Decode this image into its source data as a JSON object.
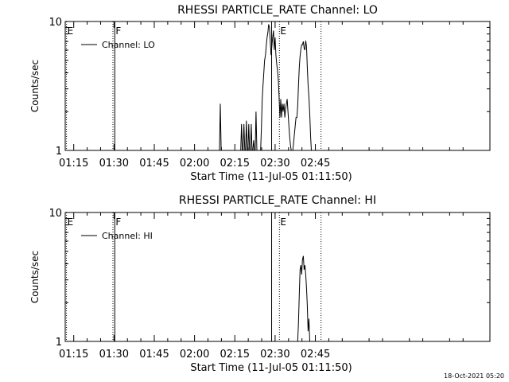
{
  "chart_data": [
    {
      "type": "line",
      "title": "RHESSI PARTICLE_RATE Channel: LO",
      "xlabel": "Start Time (11-Jul-05 01:11:50)",
      "ylabel": "Counts/sec",
      "yscale": "log",
      "xlim": [
        11.83,
        170.0
      ],
      "ylim": [
        1,
        10
      ],
      "xticks": [
        {
          "v": 15,
          "label": "01:15"
        },
        {
          "v": 30,
          "label": "01:30"
        },
        {
          "v": 45,
          "label": "01:45"
        },
        {
          "v": 60,
          "label": "02:00"
        },
        {
          "v": 75,
          "label": "02:15"
        },
        {
          "v": 90,
          "label": "02:30"
        },
        {
          "v": 105,
          "label": "02:45"
        }
      ],
      "yticks": [
        {
          "v": 1,
          "label": "1"
        },
        {
          "v": 10,
          "label": "10"
        }
      ],
      "legend": {
        "position": "top-left",
        "entries": [
          "Channel: LO"
        ]
      },
      "markers": [
        {
          "x": 12.3,
          "label": "E",
          "style": "dotted"
        },
        {
          "x": 29.6,
          "label": "",
          "style": "dotted"
        },
        {
          "x": 30.3,
          "label": "F",
          "style": "solid"
        },
        {
          "x": 88.7,
          "label": "",
          "style": "solid"
        },
        {
          "x": 91.6,
          "label": "E",
          "style": "dotted"
        },
        {
          "x": 107.1,
          "label": "",
          "style": "dotted"
        }
      ],
      "series": [
        {
          "x": [
            69.0,
            69.3,
            69.6,
            69.9,
            70.2,
            77.2,
            77.5,
            77.8,
            78.1,
            78.4,
            78.7,
            79.0,
            79.3,
            79.6,
            79.9,
            80.2,
            80.5,
            80.8,
            81.1,
            81.4,
            81.7,
            82.0,
            82.3,
            82.6,
            82.9,
            83.2,
            83.5,
            83.8,
            84.6,
            84.9,
            85.2,
            85.5,
            85.8,
            86.1,
            86.4,
            86.7,
            87.0,
            87.3,
            87.6,
            87.9,
            88.2,
            88.5,
            88.8,
            89.1,
            89.4,
            89.7,
            90.0,
            90.3,
            90.6,
            90.9,
            91.2,
            91.5,
            91.8,
            92.1,
            92.4,
            92.7,
            93.0,
            93.3,
            93.6,
            93.9,
            94.2,
            94.5,
            94.8,
            95.1,
            95.4,
            95.7,
            96.0,
            96.3,
            96.6,
            97.8,
            98.1,
            98.4,
            98.7,
            99.0,
            99.3,
            99.6,
            99.9,
            100.2,
            100.5,
            100.8,
            101.1,
            101.4,
            101.7,
            102.0,
            102.3,
            102.6,
            102.9,
            103.2,
            103.5
          ],
          "y": [
            1,
            1,
            2.3,
            1,
            1,
            1,
            1.6,
            1,
            1,
            1.6,
            1,
            1,
            1.7,
            1,
            1,
            1.6,
            1,
            1,
            1.6,
            1,
            1,
            1.2,
            1,
            1,
            2,
            1,
            1,
            1,
            1,
            1.5,
            2.5,
            3.2,
            4,
            5,
            5.5,
            6.5,
            7.5,
            8.2,
            9.5,
            9,
            7,
            5.5,
            6.5,
            7.6,
            8.5,
            6,
            7.5,
            5.5,
            4.7,
            4.2,
            3.5,
            2.5,
            1.8,
            2.5,
            1.8,
            2.3,
            2,
            2.3,
            1.8,
            2.1,
            2.3,
            2.5,
            2,
            1.6,
            1.3,
            1.1,
            1,
            1,
            1,
            1.8,
            1.8,
            2.2,
            3.2,
            4.4,
            5.4,
            6.1,
            6.6,
            6.6,
            7.0,
            6.2,
            6.0,
            7.1,
            6.4,
            4.4,
            3.2,
            2.6,
            1.9,
            1.3,
            1
          ]
        }
      ]
    },
    {
      "type": "line",
      "title": "RHESSI PARTICLE_RATE Channel: HI",
      "xlabel": "Start Time (11-Jul-05 01:11:50)",
      "ylabel": "Counts/sec",
      "yscale": "log",
      "xlim": [
        11.83,
        170.0
      ],
      "ylim": [
        1,
        10
      ],
      "xticks": [
        {
          "v": 15,
          "label": "01:15"
        },
        {
          "v": 30,
          "label": "01:30"
        },
        {
          "v": 45,
          "label": "01:45"
        },
        {
          "v": 60,
          "label": "02:00"
        },
        {
          "v": 75,
          "label": "02:15"
        },
        {
          "v": 90,
          "label": "02:30"
        },
        {
          "v": 105,
          "label": "02:45"
        }
      ],
      "yticks": [
        {
          "v": 1,
          "label": "1"
        },
        {
          "v": 10,
          "label": "10"
        }
      ],
      "legend": {
        "position": "top-left",
        "entries": [
          "Channel: HI"
        ]
      },
      "markers": [
        {
          "x": 12.3,
          "label": "E",
          "style": "dotted"
        },
        {
          "x": 29.6,
          "label": "",
          "style": "dotted"
        },
        {
          "x": 30.3,
          "label": "F",
          "style": "solid"
        },
        {
          "x": 88.7,
          "label": "",
          "style": "solid"
        },
        {
          "x": 91.6,
          "label": "E",
          "style": "dotted"
        },
        {
          "x": 107.1,
          "label": "",
          "style": "dotted"
        }
      ],
      "series": [
        {
          "x": [
            98.4,
            98.7,
            99.0,
            99.3,
            99.6,
            99.9,
            100.2,
            100.5,
            100.8,
            101.1,
            101.4,
            101.7,
            102.0,
            102.3,
            102.6,
            102.9
          ],
          "y": [
            1,
            1.4,
            2.3,
            3.6,
            3.9,
            3.3,
            4.3,
            4.6,
            3.6,
            3.9,
            3.3,
            2.6,
            1.9,
            1.2,
            1.5,
            1
          ]
        }
      ]
    }
  ],
  "footer": {
    "timestamp": "18-Oct-2021 05:20"
  }
}
